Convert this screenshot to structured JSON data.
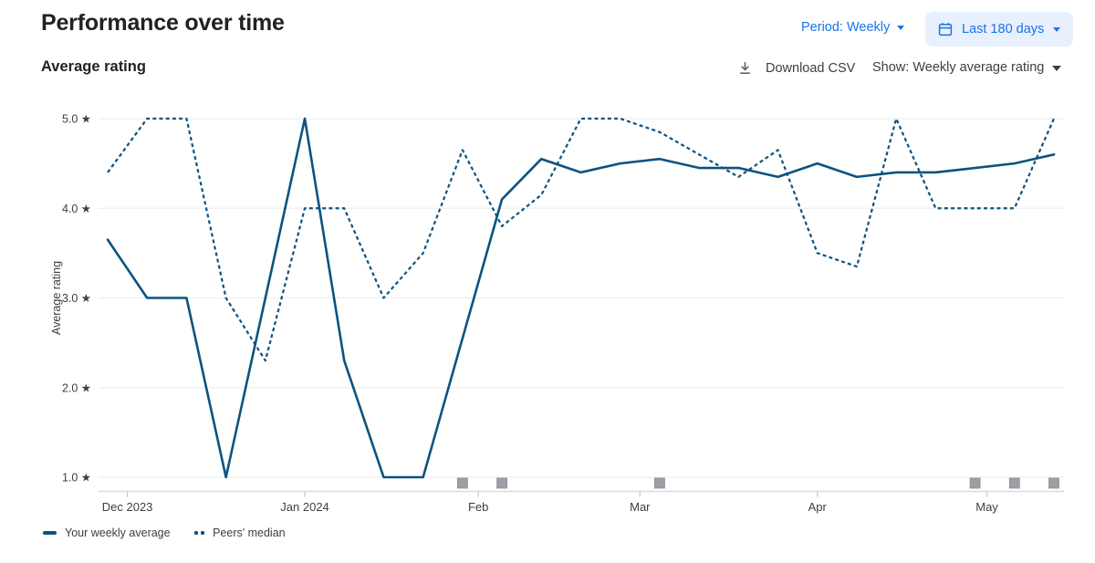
{
  "header": {
    "title": "Performance over time",
    "period_label": "Period: Weekly",
    "date_range_label": "Last 180 days"
  },
  "toolbar": {
    "section_title": "Average rating",
    "download_label": "Download CSV",
    "show_label": "Show: Weekly average rating"
  },
  "legend": [
    {
      "name": "Your weekly average",
      "style": "solid"
    },
    {
      "name": "Peers' median",
      "style": "dotted"
    }
  ],
  "colors": {
    "line": "#0d5280",
    "accent_blue": "#1a73e8",
    "chip_bg": "#e8f0fe",
    "grid": "#eceef1",
    "axis": "#dadce0",
    "tick": "#c9ccd1",
    "label_text": "#3c4043",
    "marker": "#9aa0a6",
    "marker_border": "#8a8e93"
  },
  "chart_data": {
    "type": "line",
    "title": "Average rating",
    "ylabel": "Average rating",
    "ylim": [
      1,
      5
    ],
    "ytick_values": [
      5,
      4,
      3,
      2,
      1
    ],
    "ytick_labels": [
      "5.0 ★",
      "4.0 ★",
      "3.0 ★",
      "2.0 ★",
      "1.0 ★"
    ],
    "x_unit": "week",
    "n_points": 25,
    "xtick_labels": [
      "Dec 2023",
      "Jan 2024",
      "Feb",
      "Mar",
      "Apr",
      "May"
    ],
    "xtick_week_positions": [
      0.5,
      5.0,
      9.4,
      13.5,
      18.0,
      22.3
    ],
    "grid": true,
    "legend_position": "bottom-left",
    "series": [
      {
        "name": "Your weekly average",
        "style": "solid",
        "values": [
          3.65,
          3.0,
          3.0,
          1.0,
          3.0,
          5.0,
          2.3,
          1.0,
          1.0,
          2.55,
          4.1,
          4.55,
          4.4,
          4.5,
          4.55,
          4.45,
          4.45,
          4.35,
          4.5,
          4.35,
          4.4,
          4.4,
          4.45,
          4.5,
          4.6
        ]
      },
      {
        "name": "Peers' median",
        "style": "dotted",
        "values": [
          4.4,
          5.0,
          5.0,
          3.0,
          2.3,
          4.0,
          4.0,
          3.0,
          3.5,
          4.65,
          3.8,
          4.15,
          5.0,
          5.0,
          4.85,
          4.6,
          4.35,
          4.65,
          3.5,
          3.35,
          5.0,
          4.0,
          4.0,
          4.0,
          5.0
        ]
      }
    ],
    "app_update_marker_indices": [
      9,
      10,
      14,
      22,
      23,
      24
    ]
  }
}
